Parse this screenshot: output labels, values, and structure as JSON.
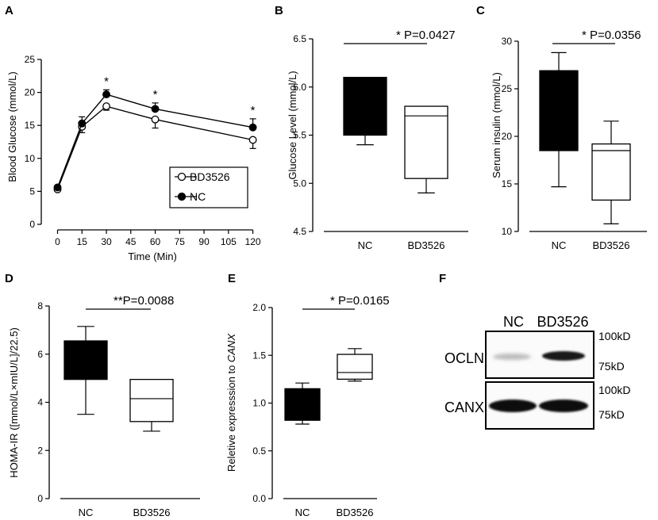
{
  "panel_letters": [
    "A",
    "B",
    "C",
    "D",
    "E",
    "F"
  ],
  "chart_data": [
    {
      "panel": "A",
      "type": "line",
      "xlabel": "Time (Min)",
      "ylabel": "Blood Glucose (mmol/L)",
      "x": [
        0,
        15,
        30,
        60,
        120
      ],
      "xticks": [
        "0",
        "15",
        "30",
        "45",
        "60",
        "75",
        "90",
        "105",
        "120"
      ],
      "xtick_values": [
        0,
        15,
        30,
        45,
        60,
        75,
        90,
        105,
        120
      ],
      "xlim": [
        -10,
        128
      ],
      "ylim": [
        0,
        25
      ],
      "yticks": [
        "0",
        "5",
        "10",
        "15",
        "20",
        "25"
      ],
      "ytick_values": [
        0,
        5,
        10,
        15,
        20,
        25
      ],
      "series": [
        {
          "name": "BD3526",
          "marker": "open-circle",
          "values": [
            5.3,
            14.8,
            17.9,
            15.9,
            12.8
          ],
          "err": [
            0.3,
            0.9,
            0.6,
            1.3,
            1.3
          ]
        },
        {
          "name": "NC",
          "marker": "filled-circle",
          "values": [
            5.6,
            15.3,
            19.7,
            17.5,
            14.7
          ],
          "err": [
            0.3,
            1.0,
            0.7,
            0.9,
            1.3
          ]
        }
      ],
      "significance": [
        {
          "x": 30,
          "label": "*"
        },
        {
          "x": 60,
          "label": "*"
        },
        {
          "x": 120,
          "label": "*"
        }
      ],
      "legend": [
        "BD3526",
        "NC"
      ]
    },
    {
      "panel": "B",
      "type": "box",
      "ylabel": "Glucose Level (mmol/L)",
      "categories": [
        "NC",
        "BD3526"
      ],
      "ylim": [
        4.5,
        6.5
      ],
      "yticks": [
        "4.5",
        "5.0",
        "5.5",
        "6.0",
        "6.5"
      ],
      "ytick_values": [
        4.5,
        5.0,
        5.5,
        6.0,
        6.5
      ],
      "boxes": [
        {
          "min": 5.4,
          "q1": 5.5,
          "median": 6.1,
          "q3": 6.1,
          "max": 6.1,
          "fill": "#000000"
        },
        {
          "min": 4.9,
          "q1": 5.05,
          "median": 5.7,
          "q3": 5.8,
          "max": 5.8,
          "fill": "#ffffff"
        }
      ],
      "pvalue": "* P=0.0427"
    },
    {
      "panel": "C",
      "type": "box",
      "ylabel": "Serum insulin (mmol/L)",
      "categories": [
        "NC",
        "BD3526"
      ],
      "ylim": [
        10,
        30
      ],
      "yticks": [
        "10",
        "15",
        "20",
        "25",
        "30"
      ],
      "ytick_values": [
        10,
        15,
        20,
        25,
        30
      ],
      "boxes": [
        {
          "min": 14.7,
          "q1": 18.5,
          "median": 26.9,
          "q3": 26.9,
          "max": 28.8,
          "fill": "#000000"
        },
        {
          "min": 10.8,
          "q1": 13.3,
          "median": 18.5,
          "q3": 19.2,
          "max": 21.6,
          "fill": "#ffffff"
        }
      ],
      "pvalue": "*  P=0.0356"
    },
    {
      "panel": "D",
      "type": "box",
      "ylabel": "HOMA-IR ([mmol/L×mIU/L]/22.5)",
      "categories": [
        "NC",
        "BD3526"
      ],
      "ylim": [
        0,
        8
      ],
      "yticks": [
        "0",
        "2",
        "4",
        "6",
        "8"
      ],
      "ytick_values": [
        0,
        2,
        4,
        6,
        8
      ],
      "boxes": [
        {
          "min": 3.5,
          "q1": 4.95,
          "median": 6.55,
          "q3": 6.55,
          "max": 7.15,
          "fill": "#000000"
        },
        {
          "min": 2.8,
          "q1": 3.2,
          "median": 4.15,
          "q3": 4.95,
          "max": 4.95,
          "fill": "#ffffff"
        }
      ],
      "pvalue": "**P=0.0088"
    },
    {
      "panel": "E",
      "type": "box",
      "ylabel_prefix": "Reletive expresssion to ",
      "ylabel_gene": "CANX",
      "categories": [
        "NC",
        "BD3526"
      ],
      "ylim": [
        0,
        2.0
      ],
      "yticks": [
        "0.0",
        "0.5",
        "1.0",
        "1.5",
        "2.0"
      ],
      "ytick_values": [
        0,
        0.5,
        1.0,
        1.5,
        2.0
      ],
      "boxes": [
        {
          "min": 0.78,
          "q1": 0.82,
          "median": 1.15,
          "q3": 1.15,
          "max": 1.21,
          "fill": "#000000"
        },
        {
          "min": 1.23,
          "q1": 1.25,
          "median": 1.32,
          "q3": 1.51,
          "max": 1.57,
          "fill": "#ffffff"
        }
      ],
      "pvalue": "* P=0.0165"
    }
  ],
  "blot": {
    "panel": "F",
    "lanes": [
      "NC",
      "BD3526"
    ],
    "rows": [
      {
        "label": "OCLN",
        "markers": [
          "100kD",
          "75kD"
        ],
        "band_intensity": [
          0.25,
          0.9
        ]
      },
      {
        "label": "CANX",
        "markers": [
          "100kD",
          "75kD"
        ],
        "band_intensity": [
          0.95,
          0.95
        ]
      }
    ]
  }
}
